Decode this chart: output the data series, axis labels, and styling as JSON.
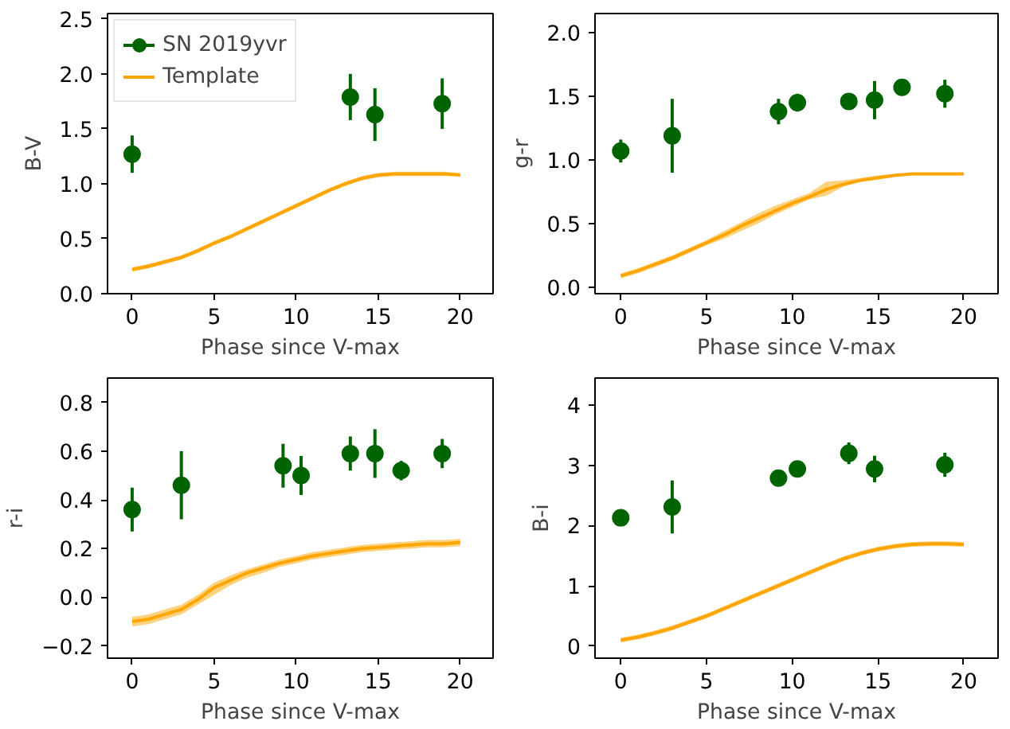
{
  "chart_data": [
    {
      "type": "scatter",
      "xlabel": "Phase since V-max",
      "ylabel": "B-V",
      "xlim": [
        -1.5,
        22
      ],
      "ylim": [
        0,
        2.55
      ],
      "xticks": [
        0,
        5,
        10,
        15,
        20
      ],
      "yticks": [
        {
          "value": 0,
          "label": "0.0"
        },
        0.5,
        {
          "value": 1,
          "label": "1.0"
        },
        1.5,
        {
          "value": 2,
          "label": "2.0"
        },
        2.5
      ],
      "legend": "top left",
      "grid": false,
      "series": [
        {
          "name": "SN 2019yvr",
          "marker": "circle",
          "color": "#006400",
          "x": [
            0,
            13.3,
            14.8,
            18.9
          ],
          "values": [
            1.27,
            1.79,
            1.63,
            1.73
          ],
          "errors": [
            0.17,
            0.21,
            0.24,
            0.23
          ]
        },
        {
          "name": "Template",
          "type": "line",
          "color": "#ffa500",
          "x": [
            0,
            1,
            2,
            3,
            4,
            5,
            6,
            7,
            8,
            9,
            10,
            11,
            12,
            13,
            14,
            15,
            16,
            17,
            18,
            19,
            20
          ],
          "values": [
            0.22,
            0.25,
            0.29,
            0.33,
            0.39,
            0.46,
            0.52,
            0.59,
            0.66,
            0.73,
            0.8,
            0.87,
            0.94,
            1.0,
            1.05,
            1.08,
            1.09,
            1.09,
            1.09,
            1.09,
            1.08
          ],
          "lower": [
            0.2,
            0.23,
            0.27,
            0.31,
            0.37,
            0.44,
            0.5,
            0.57,
            0.64,
            0.71,
            0.78,
            0.85,
            0.92,
            0.98,
            1.03,
            1.06,
            1.07,
            1.07,
            1.07,
            1.07,
            1.07
          ],
          "upper": [
            0.24,
            0.27,
            0.31,
            0.35,
            0.41,
            0.48,
            0.54,
            0.61,
            0.68,
            0.75,
            0.82,
            0.89,
            0.96,
            1.02,
            1.07,
            1.1,
            1.11,
            1.11,
            1.11,
            1.11,
            1.1
          ]
        }
      ]
    },
    {
      "type": "scatter",
      "xlabel": "Phase since V-max",
      "ylabel": "g-r",
      "xlim": [
        -1.5,
        22
      ],
      "ylim": [
        -0.05,
        2.15
      ],
      "xticks": [
        0,
        5,
        10,
        15,
        20
      ],
      "yticks": [
        {
          "value": 0,
          "label": "0.0"
        },
        0.5,
        {
          "value": 1,
          "label": "1.0"
        },
        1.5,
        {
          "value": 2,
          "label": "2.0"
        }
      ],
      "legend": false,
      "grid": false,
      "series": [
        {
          "marker": "circle",
          "color": "#006400",
          "x": [
            0,
            3,
            9.2,
            10.3,
            13.3,
            14.8,
            16.4,
            18.9
          ],
          "values": [
            1.07,
            1.19,
            1.38,
            1.45,
            1.46,
            1.47,
            1.57,
            1.52
          ],
          "errors": [
            0.09,
            0.29,
            0.1,
            0.07,
            0.05,
            0.15,
            0.03,
            0.11
          ]
        },
        {
          "type": "line",
          "color": "#ffa500",
          "x": [
            0,
            1,
            2,
            3,
            4,
            5,
            6,
            7,
            8,
            9,
            10,
            11,
            12,
            13,
            14,
            15,
            16,
            17,
            18,
            19,
            20
          ],
          "values": [
            0.09,
            0.13,
            0.18,
            0.23,
            0.29,
            0.35,
            0.41,
            0.48,
            0.54,
            0.6,
            0.66,
            0.71,
            0.77,
            0.81,
            0.84,
            0.86,
            0.88,
            0.89,
            0.89,
            0.89,
            0.89
          ],
          "lower": [
            0.07,
            0.11,
            0.16,
            0.21,
            0.27,
            0.33,
            0.38,
            0.44,
            0.5,
            0.57,
            0.63,
            0.69,
            0.72,
            0.79,
            0.83,
            0.85,
            0.87,
            0.88,
            0.88,
            0.88,
            0.88
          ],
          "upper": [
            0.11,
            0.15,
            0.2,
            0.25,
            0.31,
            0.37,
            0.44,
            0.51,
            0.58,
            0.64,
            0.69,
            0.74,
            0.83,
            0.84,
            0.86,
            0.88,
            0.89,
            0.9,
            0.9,
            0.9,
            0.9
          ]
        }
      ]
    },
    {
      "type": "scatter",
      "xlabel": "Phase since V-max",
      "ylabel": "r-i",
      "xlim": [
        -1.5,
        22
      ],
      "ylim": [
        -0.25,
        0.9
      ],
      "xticks": [
        0,
        5,
        10,
        15,
        20
      ],
      "yticks": [
        {
          "value": -0.2,
          "label": "−0.2"
        },
        {
          "value": 0,
          "label": "0.0"
        },
        0.2,
        0.4,
        0.6,
        0.8
      ],
      "legend": false,
      "grid": false,
      "series": [
        {
          "marker": "circle",
          "color": "#006400",
          "x": [
            0,
            3,
            9.2,
            10.3,
            13.3,
            14.8,
            16.4,
            18.9
          ],
          "values": [
            0.36,
            0.46,
            0.54,
            0.5,
            0.59,
            0.59,
            0.52,
            0.59
          ],
          "errors": [
            0.09,
            0.14,
            0.09,
            0.08,
            0.07,
            0.1,
            0.04,
            0.06
          ]
        },
        {
          "type": "line",
          "color": "#ffa500",
          "x": [
            0,
            1,
            2,
            3,
            4,
            5,
            6,
            7,
            8,
            9,
            10,
            11,
            12,
            13,
            14,
            15,
            16,
            17,
            18,
            19,
            20
          ],
          "values": [
            -0.1,
            -0.09,
            -0.07,
            -0.05,
            -0.01,
            0.04,
            0.07,
            0.1,
            0.12,
            0.14,
            0.155,
            0.17,
            0.18,
            0.19,
            0.2,
            0.205,
            0.21,
            0.215,
            0.22,
            0.22,
            0.225
          ],
          "lower": [
            -0.12,
            -0.11,
            -0.09,
            -0.07,
            -0.03,
            0.01,
            0.05,
            0.08,
            0.1,
            0.125,
            0.14,
            0.155,
            0.165,
            0.175,
            0.185,
            0.19,
            0.195,
            0.2,
            0.205,
            0.205,
            0.21
          ],
          "upper": [
            -0.08,
            -0.07,
            -0.05,
            -0.03,
            0.01,
            0.06,
            0.09,
            0.115,
            0.135,
            0.155,
            0.17,
            0.185,
            0.195,
            0.205,
            0.215,
            0.22,
            0.225,
            0.23,
            0.235,
            0.235,
            0.24
          ]
        }
      ]
    },
    {
      "type": "scatter",
      "xlabel": "Phase since V-max",
      "ylabel": "B-i",
      "xlim": [
        -1.5,
        22
      ],
      "ylim": [
        -0.2,
        4.45
      ],
      "xticks": [
        0,
        5,
        10,
        15,
        20
      ],
      "yticks": [
        0,
        1,
        2,
        3,
        4
      ],
      "legend": false,
      "grid": false,
      "series": [
        {
          "marker": "circle",
          "color": "#006400",
          "x": [
            0,
            3,
            9.2,
            10.3,
            13.3,
            14.8,
            18.9
          ],
          "values": [
            2.13,
            2.31,
            2.79,
            2.94,
            3.2,
            2.94,
            3.01
          ],
          "errors": [
            0.12,
            0.44,
            0.08,
            0.12,
            0.18,
            0.22,
            0.2
          ]
        },
        {
          "type": "line",
          "color": "#ffa500",
          "x": [
            0,
            1,
            2,
            3,
            4,
            5,
            6,
            7,
            8,
            9,
            10,
            11,
            12,
            13,
            14,
            15,
            16,
            17,
            18,
            19,
            20
          ],
          "values": [
            0.1,
            0.15,
            0.22,
            0.3,
            0.4,
            0.5,
            0.62,
            0.74,
            0.86,
            0.98,
            1.1,
            1.22,
            1.34,
            1.45,
            1.54,
            1.61,
            1.66,
            1.69,
            1.7,
            1.7,
            1.69
          ],
          "lower": [
            0.06,
            0.11,
            0.18,
            0.26,
            0.36,
            0.46,
            0.58,
            0.7,
            0.82,
            0.94,
            1.06,
            1.18,
            1.3,
            1.41,
            1.5,
            1.57,
            1.62,
            1.65,
            1.66,
            1.66,
            1.65
          ],
          "upper": [
            0.14,
            0.19,
            0.26,
            0.34,
            0.44,
            0.54,
            0.66,
            0.78,
            0.9,
            1.02,
            1.14,
            1.26,
            1.38,
            1.49,
            1.58,
            1.65,
            1.7,
            1.73,
            1.74,
            1.74,
            1.73
          ]
        }
      ]
    }
  ]
}
